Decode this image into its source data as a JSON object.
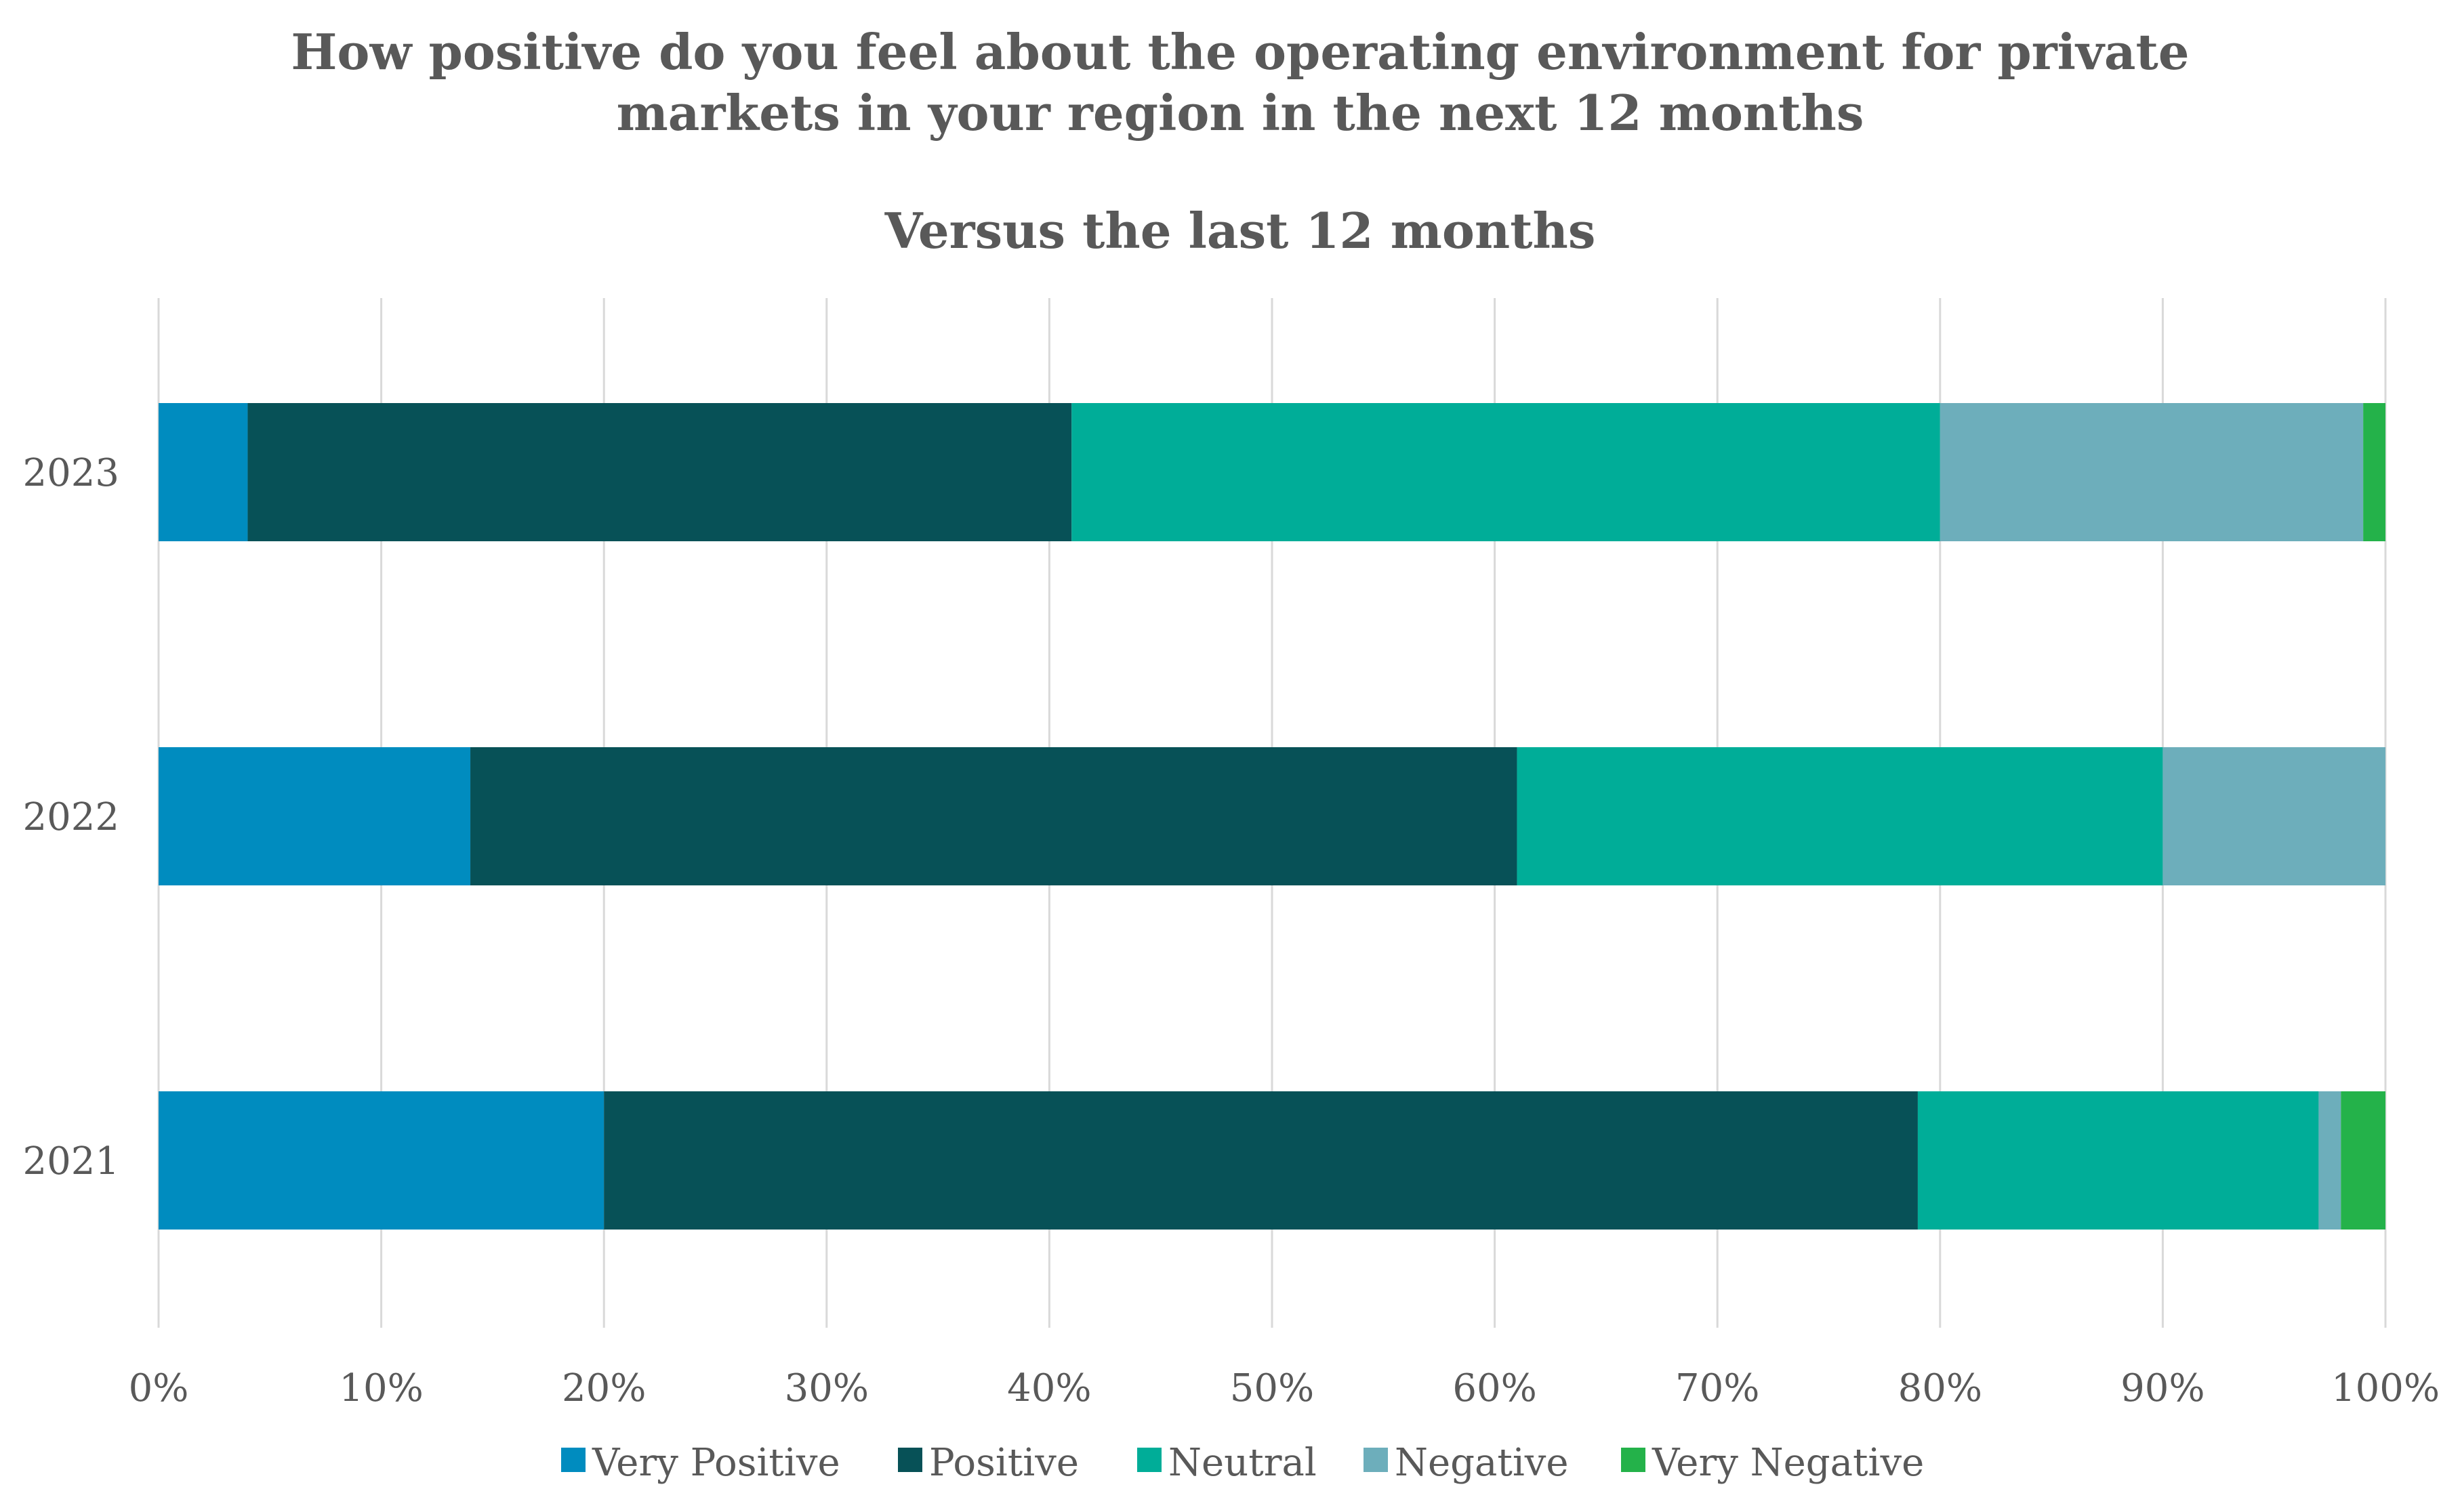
{
  "chart_data": {
    "type": "bar",
    "orientation": "horizontal",
    "stacked": "percent",
    "title": "How positive do you feel about the operating environment for private markets in your region in the next 12 months",
    "subtitle": "Versus the last 12 months",
    "categories": [
      "2023",
      "2022",
      "2021"
    ],
    "series": [
      {
        "name": "Very Positive",
        "color": "#008CBF",
        "values": [
          4,
          14,
          20
        ]
      },
      {
        "name": "Positive",
        "color": "#075157",
        "values": [
          37,
          47,
          59
        ]
      },
      {
        "name": "Neutral",
        "color": "#00AD98",
        "values": [
          39,
          29,
          18
        ]
      },
      {
        "name": "Negative",
        "color": "#6DAEBB",
        "values": [
          19,
          10,
          1
        ]
      },
      {
        "name": "Very Negative",
        "color": "#24B24A",
        "values": [
          1,
          0,
          2
        ]
      }
    ],
    "xlim": [
      0,
      100
    ],
    "x_ticks": [
      "0%",
      "10%",
      "20%",
      "30%",
      "40%",
      "50%",
      "60%",
      "70%",
      "80%",
      "90%",
      "100%"
    ],
    "grid": "vertical",
    "legend": "bottom"
  }
}
